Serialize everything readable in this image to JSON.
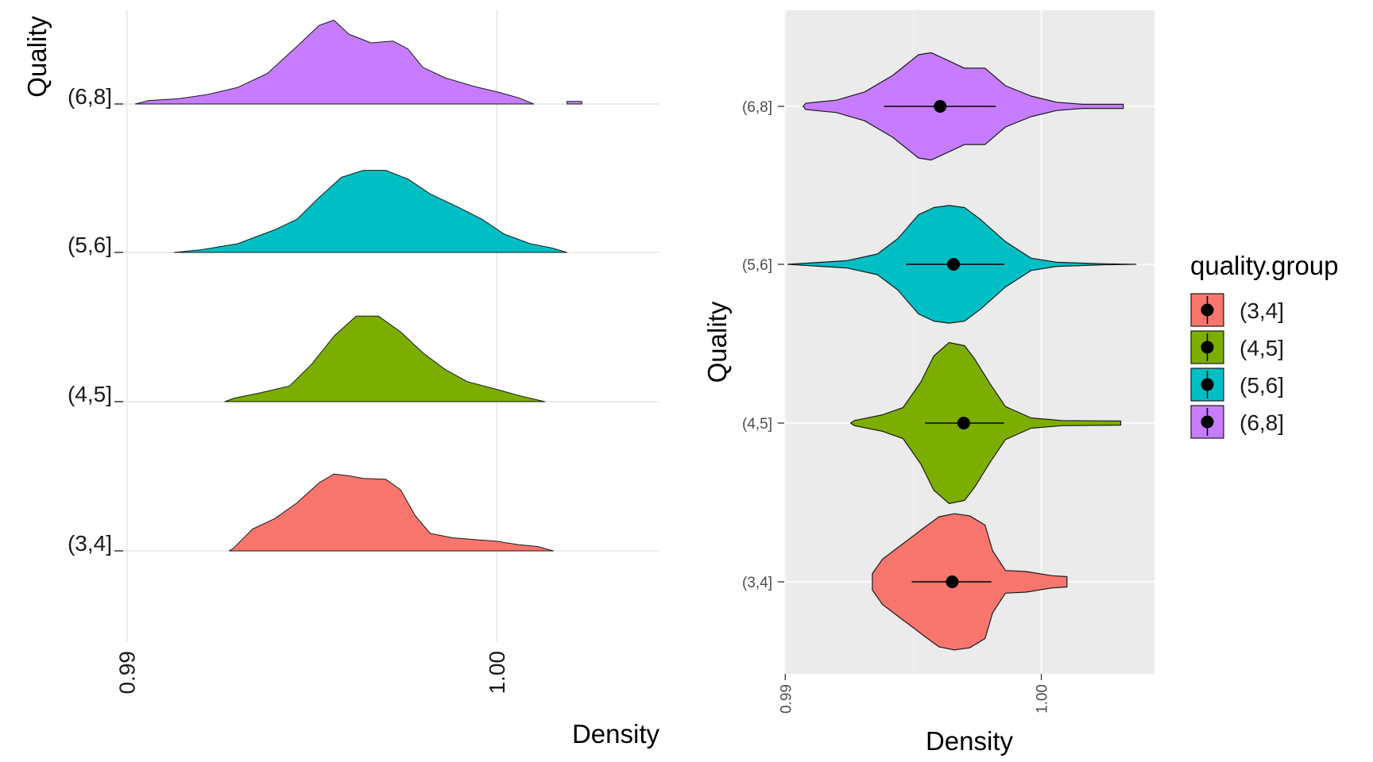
{
  "chart_data": [
    {
      "type": "ridgeline",
      "xlabel": "Density",
      "ylabel": "Quality",
      "xlim": [
        0.9899,
        1.0044
      ],
      "x_ticks": [
        0.99,
        1.0
      ],
      "x_tick_labels": [
        "0.99",
        "1.00"
      ],
      "categories": [
        "(3,4]",
        "(4,5]",
        "(5,6]",
        "(6,8]"
      ],
      "series": [
        {
          "name": "(3,4]",
          "color": "#F8766D",
          "points": [
            [
              0.99277,
              0.0
            ],
            [
              0.99288,
              0.03
            ],
            [
              0.9934,
              0.25
            ],
            [
              0.994,
              0.37
            ],
            [
              0.9946,
              0.55
            ],
            [
              0.9952,
              0.78
            ],
            [
              0.9956,
              0.88
            ],
            [
              0.996,
              0.86
            ],
            [
              0.9964,
              0.83
            ],
            [
              0.997,
              0.82
            ],
            [
              0.9974,
              0.7
            ],
            [
              0.9978,
              0.4
            ],
            [
              0.9982,
              0.2
            ],
            [
              0.9988,
              0.15
            ],
            [
              0.9994,
              0.13
            ],
            [
              1.0,
              0.11
            ],
            [
              1.0006,
              0.07
            ],
            [
              1.0011,
              0.05
            ],
            [
              1.00153,
              0.0
            ]
          ]
        },
        {
          "name": "(4,5]",
          "color": "#7CAE00",
          "points": [
            [
              0.99265,
              0.0
            ],
            [
              0.9929,
              0.04
            ],
            [
              0.9936,
              0.1
            ],
            [
              0.9944,
              0.18
            ],
            [
              0.995,
              0.43
            ],
            [
              0.9956,
              0.75
            ],
            [
              0.9962,
              0.98
            ],
            [
              0.9968,
              0.98
            ],
            [
              0.9974,
              0.8
            ],
            [
              0.998,
              0.56
            ],
            [
              0.9986,
              0.37
            ],
            [
              0.9992,
              0.23
            ],
            [
              1.0,
              0.14
            ],
            [
              1.0006,
              0.07
            ],
            [
              1.0013,
              0.0
            ]
          ]
        },
        {
          "name": "(5,6]",
          "color": "#00BFC4",
          "points": [
            [
              0.99128,
              0.0
            ],
            [
              0.992,
              0.03
            ],
            [
              0.993,
              0.1
            ],
            [
              0.994,
              0.26
            ],
            [
              0.9946,
              0.38
            ],
            [
              0.9952,
              0.63
            ],
            [
              0.9958,
              0.86
            ],
            [
              0.9964,
              0.94
            ],
            [
              0.997,
              0.94
            ],
            [
              0.9976,
              0.84
            ],
            [
              0.9982,
              0.67
            ],
            [
              0.999,
              0.51
            ],
            [
              0.9996,
              0.38
            ],
            [
              1.0002,
              0.21
            ],
            [
              1.0009,
              0.1
            ],
            [
              1.0015,
              0.05
            ],
            [
              1.0019,
              0.0
            ]
          ]
        },
        {
          "name": "(6,8]",
          "color": "#C77CFF",
          "points": [
            [
              0.99023,
              0.0
            ],
            [
              0.9906,
              0.04
            ],
            [
              0.9914,
              0.06
            ],
            [
              0.9922,
              0.11
            ],
            [
              0.993,
              0.19
            ],
            [
              0.9938,
              0.35
            ],
            [
              0.9946,
              0.66
            ],
            [
              0.9952,
              0.9
            ],
            [
              0.9956,
              0.96
            ],
            [
              0.996,
              0.8
            ],
            [
              0.9966,
              0.7
            ],
            [
              0.9972,
              0.72
            ],
            [
              0.9976,
              0.63
            ],
            [
              0.998,
              0.42
            ],
            [
              0.9986,
              0.3
            ],
            [
              0.9994,
              0.2
            ],
            [
              1.0,
              0.14
            ],
            [
              1.0006,
              0.07
            ],
            [
              1.001,
              0.0
            ]
          ],
          "extra": [
            [
              1.0019,
              0.0
            ],
            [
              1.0019,
              0.03
            ],
            [
              1.0023,
              0.03
            ],
            [
              1.0023,
              0.0
            ]
          ]
        }
      ]
    },
    {
      "type": "violin",
      "xlabel": "Density",
      "ylabel": "Quality",
      "xlim": [
        0.98996,
        1.00442
      ],
      "x_ticks": [
        0.99,
        1.0
      ],
      "x_tick_labels": [
        "0.99",
        "1.00"
      ],
      "categories": [
        "(3,4]",
        "(4,5]",
        "(5,6]",
        "(6,8]"
      ],
      "legend": {
        "title": "quality.group",
        "position": "right",
        "labels": [
          "(3,4]",
          "(4,5]",
          "(5,6]",
          "(6,8]"
        ]
      },
      "series": [
        {
          "name": "(3,4]",
          "color": "#F8766D",
          "mean": 0.99652,
          "range": [
            0.99494,
            0.99805
          ],
          "profile": [
            [
              0.9934,
              0.0
            ],
            [
              0.9934,
              0.08
            ],
            [
              0.9938,
              0.22
            ],
            [
              0.9946,
              0.37
            ],
            [
              0.9954,
              0.52
            ],
            [
              0.996,
              0.63
            ],
            [
              0.9966,
              0.66
            ],
            [
              0.9972,
              0.64
            ],
            [
              0.9978,
              0.55
            ],
            [
              0.9981,
              0.3
            ],
            [
              0.9986,
              0.11
            ],
            [
              0.9994,
              0.1
            ],
            [
              1.0004,
              0.06
            ],
            [
              1.001,
              0.05
            ],
            [
              1.001,
              0.0
            ]
          ]
        },
        {
          "name": "(4,5]",
          "color": "#7CAE00",
          "mean": 0.99697,
          "range": [
            0.99546,
            0.99854
          ],
          "profile": [
            [
              0.99255,
              0.0
            ],
            [
              0.9927,
              0.025
            ],
            [
              0.9938,
              0.08
            ],
            [
              0.9946,
              0.15
            ],
            [
              0.9953,
              0.4
            ],
            [
              0.9958,
              0.65
            ],
            [
              0.9964,
              0.78
            ],
            [
              0.997,
              0.75
            ],
            [
              0.9974,
              0.62
            ],
            [
              0.998,
              0.38
            ],
            [
              0.9986,
              0.16
            ],
            [
              0.9996,
              0.05
            ],
            [
              1.0008,
              0.025
            ],
            [
              1.0031,
              0.02
            ],
            [
              1.0031,
              0.0
            ]
          ]
        },
        {
          "name": "(5,6]",
          "color": "#00BFC4",
          "mean": 0.99657,
          "range": [
            0.99472,
            0.99856
          ],
          "profile": [
            [
              0.9901,
              0.0
            ],
            [
              0.9906,
              0.008
            ],
            [
              0.9924,
              0.035
            ],
            [
              0.9936,
              0.1
            ],
            [
              0.9944,
              0.25
            ],
            [
              0.9952,
              0.48
            ],
            [
              0.9958,
              0.55
            ],
            [
              0.9964,
              0.57
            ],
            [
              0.997,
              0.55
            ],
            [
              0.9976,
              0.44
            ],
            [
              0.9986,
              0.22
            ],
            [
              0.9996,
              0.06
            ],
            [
              1.0006,
              0.02
            ],
            [
              1.0024,
              0.005
            ],
            [
              1.0037,
              0.0
            ]
          ]
        },
        {
          "name": "(6,8]",
          "color": "#C77CFF",
          "mean": 0.99605,
          "range": [
            0.99386,
            0.99822
          ],
          "profile": [
            [
              0.9907,
              0.0
            ],
            [
              0.9908,
              0.03
            ],
            [
              0.992,
              0.06
            ],
            [
              0.9931,
              0.14
            ],
            [
              0.9942,
              0.3
            ],
            [
              0.9952,
              0.5
            ],
            [
              0.9957,
              0.52
            ],
            [
              0.9964,
              0.44
            ],
            [
              0.997,
              0.37
            ],
            [
              0.9978,
              0.37
            ],
            [
              0.9986,
              0.2
            ],
            [
              0.9996,
              0.1
            ],
            [
              1.0006,
              0.04
            ],
            [
              1.0016,
              0.02
            ],
            [
              1.0032,
              0.02
            ],
            [
              1.0032,
              0.0
            ]
          ]
        }
      ]
    }
  ]
}
